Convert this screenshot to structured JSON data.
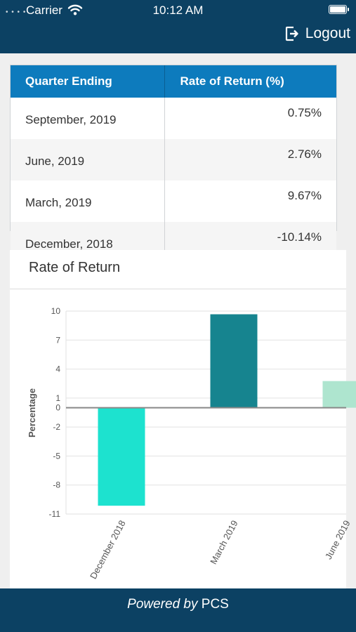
{
  "status_bar": {
    "carrier": "Carrier",
    "time": "10:12 AM"
  },
  "header": {
    "logout_label": "Logout",
    "logout_icon": "logout-icon"
  },
  "returns_table": {
    "headers": [
      "Quarter Ending",
      "Rate of Return (%)"
    ],
    "rows": [
      {
        "quarter": "September, 2019",
        "rate": "0.75%"
      },
      {
        "quarter": "June, 2019",
        "rate": "2.76%"
      },
      {
        "quarter": "March, 2019",
        "rate": "9.67%"
      },
      {
        "quarter": "December, 2018",
        "rate": "-10.14%"
      }
    ]
  },
  "chart_card": {
    "title": "Rate of Return"
  },
  "chart_data": {
    "type": "bar",
    "title": "Rate of Return",
    "xlabel": "",
    "ylabel": "Percentage",
    "categories": [
      "December 2018",
      "March 2019",
      "June 2019"
    ],
    "values": [
      -10.14,
      9.67,
      2.76
    ],
    "colors": [
      "#1de2cf",
      "#16848f",
      "#aee5cf"
    ],
    "yticks": [
      10,
      7,
      4,
      1,
      0,
      -2,
      -5,
      -8,
      -11
    ],
    "ylim": [
      -11,
      10
    ],
    "grid": true
  },
  "footer": {
    "prefix": "Powered by",
    "brand": "PCS"
  }
}
